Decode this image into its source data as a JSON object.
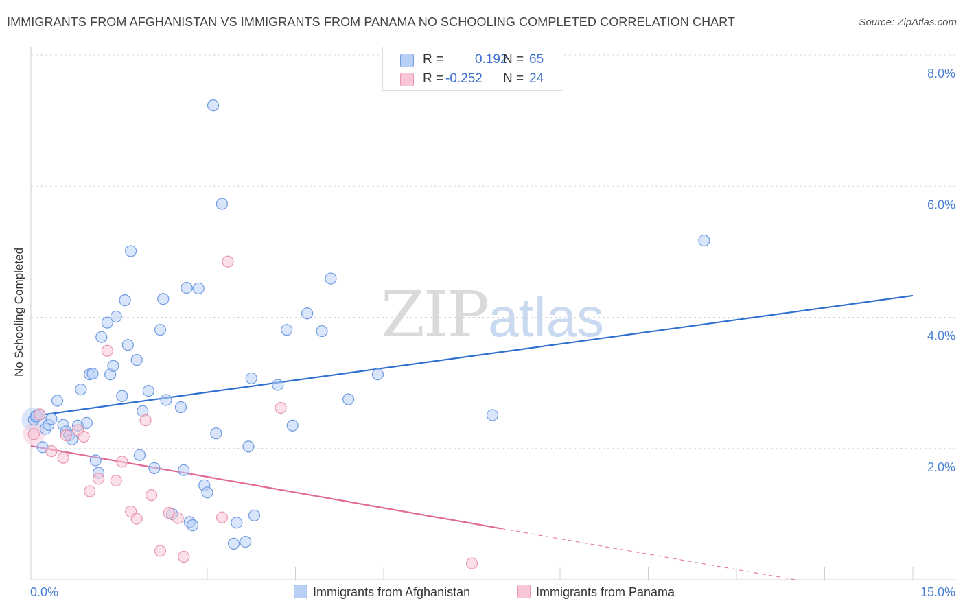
{
  "header": {
    "title": "IMMIGRANTS FROM AFGHANISTAN VS IMMIGRANTS FROM PANAMA NO SCHOOLING COMPLETED CORRELATION CHART",
    "source": "Source: ZipAtlas.com"
  },
  "watermark": {
    "zip": "ZIP",
    "atlas": "atlas"
  },
  "legend": {
    "rows": [
      {
        "r_label": "R =",
        "r_value": "0.192",
        "n_label": "N =",
        "n_value": "65"
      },
      {
        "r_label": "R =",
        "r_value": "-0.252",
        "n_label": "N =",
        "n_value": "24"
      }
    ]
  },
  "bottom_legend": {
    "items": [
      {
        "label": "Immigrants from Afghanistan"
      },
      {
        "label": "Immigrants from Panama"
      }
    ]
  },
  "colors": {
    "afghanistan_fill": "#b8d0f5",
    "afghanistan_stroke": "#6f9be0",
    "afghanistan_line": "#2f6fd0",
    "panama_fill": "#f8c6d6",
    "panama_stroke": "#e896b1",
    "panama_line": "#e0699a",
    "axis_label": "#4a7fd4"
  },
  "chart_data": {
    "type": "scatter",
    "title": "IMMIGRANTS FROM AFGHANISTAN VS IMMIGRANTS FROM PANAMA NO SCHOOLING COMPLETED CORRELATION CHART",
    "xlabel": "",
    "ylabel": "No Schooling Completed",
    "xlim": [
      0,
      15
    ],
    "ylim": [
      0,
      8
    ],
    "x_tick_labels": [
      "0.0%",
      "15.0%"
    ],
    "y_ticks": [
      2,
      4,
      6,
      8
    ],
    "y_tick_labels": [
      "2.0%",
      "4.0%",
      "6.0%",
      "8.0%"
    ],
    "grid": true,
    "series": [
      {
        "name": "Immigrants from Afghanistan",
        "r": 0.192,
        "n": 65,
        "trend": {
          "x": [
            0,
            15
          ],
          "y": [
            2.49,
            4.33
          ]
        },
        "points": [
          [
            0.05,
            2.44
          ],
          [
            0.08,
            2.49
          ],
          [
            0.1,
            2.5
          ],
          [
            0.15,
            2.52
          ],
          [
            0.2,
            2.02
          ],
          [
            0.25,
            2.3
          ],
          [
            0.3,
            2.36
          ],
          [
            0.35,
            2.45
          ],
          [
            0.45,
            2.73
          ],
          [
            0.55,
            2.36
          ],
          [
            0.6,
            2.26
          ],
          [
            0.65,
            2.2
          ],
          [
            0.7,
            2.14
          ],
          [
            0.8,
            2.35
          ],
          [
            0.85,
            2.9
          ],
          [
            0.95,
            2.39
          ],
          [
            1.0,
            3.13
          ],
          [
            1.05,
            3.14
          ],
          [
            1.1,
            1.82
          ],
          [
            1.15,
            1.63
          ],
          [
            1.2,
            3.7
          ],
          [
            1.3,
            3.92
          ],
          [
            1.35,
            3.13
          ],
          [
            1.4,
            3.26
          ],
          [
            1.45,
            4.01
          ],
          [
            1.55,
            2.8
          ],
          [
            1.6,
            4.26
          ],
          [
            1.65,
            3.58
          ],
          [
            1.7,
            5.01
          ],
          [
            1.8,
            3.35
          ],
          [
            1.85,
            1.9
          ],
          [
            1.9,
            2.57
          ],
          [
            2.0,
            2.88
          ],
          [
            2.1,
            1.7
          ],
          [
            2.2,
            3.81
          ],
          [
            2.25,
            4.28
          ],
          [
            2.3,
            2.74
          ],
          [
            2.4,
            1.0
          ],
          [
            2.55,
            2.63
          ],
          [
            2.6,
            1.67
          ],
          [
            2.65,
            4.45
          ],
          [
            2.7,
            0.88
          ],
          [
            2.75,
            0.83
          ],
          [
            2.85,
            4.44
          ],
          [
            2.95,
            1.44
          ],
          [
            3.0,
            1.33
          ],
          [
            3.1,
            7.23
          ],
          [
            3.15,
            2.23
          ],
          [
            3.25,
            5.73
          ],
          [
            3.45,
            0.55
          ],
          [
            3.5,
            0.87
          ],
          [
            3.65,
            0.58
          ],
          [
            3.7,
            2.03
          ],
          [
            3.75,
            3.07
          ],
          [
            3.8,
            0.98
          ],
          [
            4.2,
            2.97
          ],
          [
            4.35,
            3.81
          ],
          [
            4.45,
            2.35
          ],
          [
            4.7,
            4.06
          ],
          [
            4.95,
            3.79
          ],
          [
            5.1,
            4.59
          ],
          [
            5.4,
            2.75
          ],
          [
            5.9,
            3.13
          ],
          [
            7.85,
            2.51
          ],
          [
            11.45,
            5.17
          ]
        ]
      },
      {
        "name": "Immigrants from Panama",
        "r": -0.252,
        "n": 24,
        "trend": {
          "x": [
            0,
            8.0
          ],
          "y": [
            2.04,
            0.78
          ]
        },
        "trend_dashed": {
          "x": [
            8.0,
            13.0
          ],
          "y": [
            0.78,
            0.0
          ]
        },
        "points": [
          [
            0.05,
            2.22
          ],
          [
            0.15,
            2.52
          ],
          [
            0.35,
            1.96
          ],
          [
            0.55,
            1.86
          ],
          [
            0.6,
            2.2
          ],
          [
            0.8,
            2.28
          ],
          [
            0.9,
            2.18
          ],
          [
            1.0,
            1.35
          ],
          [
            1.15,
            1.54
          ],
          [
            1.3,
            3.49
          ],
          [
            1.45,
            1.51
          ],
          [
            1.55,
            1.8
          ],
          [
            1.7,
            1.04
          ],
          [
            1.8,
            0.93
          ],
          [
            1.95,
            2.43
          ],
          [
            2.05,
            1.29
          ],
          [
            2.2,
            0.44
          ],
          [
            2.35,
            1.02
          ],
          [
            2.5,
            0.94
          ],
          [
            2.6,
            0.35
          ],
          [
            3.25,
            0.95
          ],
          [
            3.35,
            4.85
          ],
          [
            4.25,
            2.62
          ],
          [
            7.5,
            0.25
          ]
        ]
      }
    ]
  }
}
